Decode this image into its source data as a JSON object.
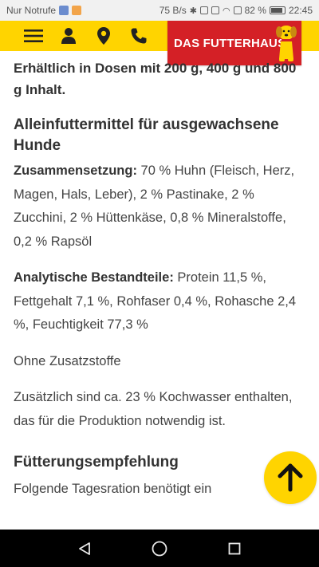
{
  "status_bar": {
    "carrier": "Nur Notrufe",
    "net_speed": "75 B/s",
    "battery": "82 %",
    "time": "22:45"
  },
  "header": {
    "logo_text": "DAS FUTTERHAUS"
  },
  "content": {
    "availability": "Erhältlich in Dosen mit 200 g, 400 g und 800 g Inhalt.",
    "section_title": "Alleinfuttermittel für ausgewachsene Hunde",
    "composition_label": "Zusammensetzung:",
    "composition_text": " 70 % Huhn (Fleisch, Herz, Magen, Hals, Leber), 2 % Pastinake, 2 % Zucchini, 2 % Hüttenkäse, 0,8 % Mineralstoffe, 0,2 % Rapsöl",
    "analytic_label": "Analytische Bestandteile:",
    "analytic_text": " Protein 11,5 %, Fettgehalt 7,1 %, Rohfaser 0,4 %, Rohasche 2,4 %, Feuchtigkeit 77,3 %",
    "additives": "Ohne Zusatzstoffe",
    "cooking_water": "Zusätzlich sind ca. 23 % Kochwasser enthalten, das für die Produktion notwendig ist.",
    "feeding_title": "Fütterungsempfehlung",
    "feeding_text": "Folgende Tagesration benötigt ein"
  },
  "colors": {
    "brand_yellow": "#ffd400",
    "brand_red": "#d42026"
  },
  "icons": {
    "menu": "hamburger-icon",
    "account": "user-icon",
    "location": "map-pin-icon",
    "call": "phone-icon",
    "scroll_top": "arrow-up-icon",
    "back": "back-triangle-icon",
    "home": "home-circle-icon",
    "recents": "recents-square-icon"
  }
}
